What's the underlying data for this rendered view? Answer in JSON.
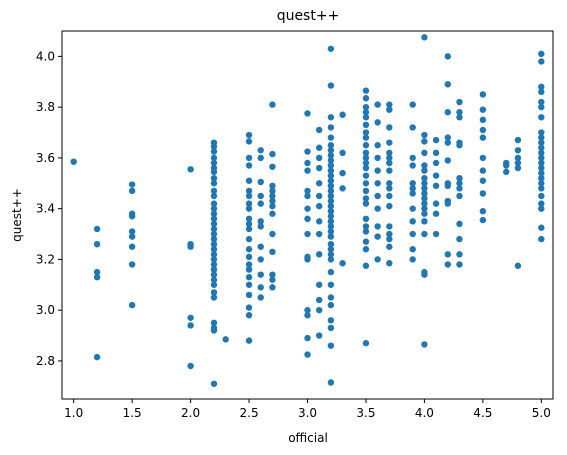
{
  "chart_data": {
    "type": "scatter",
    "title": "quest++",
    "xlabel": "official",
    "ylabel": "quest++",
    "xlim": [
      0.9,
      5.1
    ],
    "ylim": [
      2.65,
      4.1
    ],
    "x_ticks": [
      "1.0",
      "1.5",
      "2.0",
      "2.5",
      "3.0",
      "3.5",
      "4.0",
      "4.5",
      "5.0"
    ],
    "y_ticks": [
      "2.8",
      "3.0",
      "3.2",
      "3.4",
      "3.6",
      "3.8",
      "4.0"
    ],
    "x_tick_values": [
      1.0,
      1.5,
      2.0,
      2.5,
      3.0,
      3.5,
      4.0,
      4.5,
      5.0
    ],
    "y_tick_values": [
      2.8,
      3.0,
      3.2,
      3.4,
      3.6,
      3.8,
      4.0
    ],
    "grid": false,
    "point_color": "#1f77b4",
    "points": [
      [
        1.0,
        3.585
      ],
      [
        1.2,
        3.32
      ],
      [
        1.2,
        3.26
      ],
      [
        1.2,
        3.15
      ],
      [
        1.2,
        3.13
      ],
      [
        1.2,
        2.815
      ],
      [
        1.5,
        3.495
      ],
      [
        1.5,
        3.47
      ],
      [
        1.5,
        3.38
      ],
      [
        1.5,
        3.37
      ],
      [
        1.5,
        3.31
      ],
      [
        1.5,
        3.29
      ],
      [
        1.5,
        3.25
      ],
      [
        1.5,
        3.18
      ],
      [
        1.5,
        3.02
      ],
      [
        2.0,
        3.555
      ],
      [
        2.0,
        3.26
      ],
      [
        2.0,
        3.25
      ],
      [
        2.0,
        2.97
      ],
      [
        2.0,
        2.94
      ],
      [
        2.0,
        2.78
      ],
      [
        2.2,
        3.66
      ],
      [
        2.2,
        3.645
      ],
      [
        2.2,
        3.625
      ],
      [
        2.2,
        3.6
      ],
      [
        2.2,
        3.58
      ],
      [
        2.2,
        3.56
      ],
      [
        2.2,
        3.545
      ],
      [
        2.2,
        3.52
      ],
      [
        2.2,
        3.5
      ],
      [
        2.2,
        3.47
      ],
      [
        2.2,
        3.45
      ],
      [
        2.2,
        3.42
      ],
      [
        2.2,
        3.4
      ],
      [
        2.2,
        3.38
      ],
      [
        2.2,
        3.36
      ],
      [
        2.2,
        3.34
      ],
      [
        2.2,
        3.32
      ],
      [
        2.2,
        3.3
      ],
      [
        2.2,
        3.28
      ],
      [
        2.2,
        3.26
      ],
      [
        2.2,
        3.24
      ],
      [
        2.2,
        3.22
      ],
      [
        2.2,
        3.2
      ],
      [
        2.2,
        3.18
      ],
      [
        2.2,
        3.16
      ],
      [
        2.2,
        3.14
      ],
      [
        2.2,
        3.12
      ],
      [
        2.2,
        3.1
      ],
      [
        2.2,
        3.07
      ],
      [
        2.2,
        3.05
      ],
      [
        2.2,
        2.95
      ],
      [
        2.2,
        2.93
      ],
      [
        2.2,
        2.92
      ],
      [
        2.2,
        2.71
      ],
      [
        2.3,
        2.885
      ],
      [
        2.5,
        3.69
      ],
      [
        2.5,
        3.665
      ],
      [
        2.5,
        3.6
      ],
      [
        2.5,
        3.57
      ],
      [
        2.5,
        3.51
      ],
      [
        2.5,
        3.47
      ],
      [
        2.5,
        3.45
      ],
      [
        2.5,
        3.42
      ],
      [
        2.5,
        3.4
      ],
      [
        2.5,
        3.36
      ],
      [
        2.5,
        3.34
      ],
      [
        2.5,
        3.32
      ],
      [
        2.5,
        3.28
      ],
      [
        2.5,
        3.24
      ],
      [
        2.5,
        3.21
      ],
      [
        2.5,
        3.18
      ],
      [
        2.5,
        3.16
      ],
      [
        2.5,
        3.13
      ],
      [
        2.5,
        3.1
      ],
      [
        2.5,
        3.06
      ],
      [
        2.5,
        3.01
      ],
      [
        2.5,
        2.98
      ],
      [
        2.5,
        2.88
      ],
      [
        2.6,
        3.63
      ],
      [
        2.6,
        3.6
      ],
      [
        2.6,
        3.505
      ],
      [
        2.6,
        3.45
      ],
      [
        2.6,
        3.42
      ],
      [
        2.6,
        3.35
      ],
      [
        2.6,
        3.33
      ],
      [
        2.6,
        3.25
      ],
      [
        2.6,
        3.2
      ],
      [
        2.6,
        3.14
      ],
      [
        2.6,
        3.09
      ],
      [
        2.6,
        3.05
      ],
      [
        2.7,
        3.81
      ],
      [
        2.7,
        3.615
      ],
      [
        2.7,
        3.565
      ],
      [
        2.7,
        3.49
      ],
      [
        2.7,
        3.47
      ],
      [
        2.7,
        3.45
      ],
      [
        2.7,
        3.43
      ],
      [
        2.7,
        3.41
      ],
      [
        2.7,
        3.38
      ],
      [
        2.7,
        3.3
      ],
      [
        2.7,
        3.23
      ],
      [
        2.7,
        3.14
      ],
      [
        2.7,
        3.12
      ],
      [
        2.7,
        3.09
      ],
      [
        3.0,
        3.775
      ],
      [
        3.0,
        3.625
      ],
      [
        3.0,
        3.58
      ],
      [
        3.0,
        3.55
      ],
      [
        3.0,
        3.47
      ],
      [
        3.0,
        3.45
      ],
      [
        3.0,
        3.4
      ],
      [
        3.0,
        3.36
      ],
      [
        3.0,
        3.3
      ],
      [
        3.0,
        3.21
      ],
      [
        3.0,
        3.2
      ],
      [
        3.0,
        3.0
      ],
      [
        3.0,
        2.98
      ],
      [
        3.0,
        2.89
      ],
      [
        3.0,
        2.825
      ],
      [
        3.1,
        3.71
      ],
      [
        3.1,
        3.64
      ],
      [
        3.1,
        3.6
      ],
      [
        3.1,
        3.56
      ],
      [
        3.1,
        3.5
      ],
      [
        3.1,
        3.45
      ],
      [
        3.1,
        3.41
      ],
      [
        3.1,
        3.35
      ],
      [
        3.1,
        3.3
      ],
      [
        3.1,
        3.22
      ],
      [
        3.1,
        3.1
      ],
      [
        3.1,
        3.04
      ],
      [
        3.1,
        3.0
      ],
      [
        3.1,
        2.9
      ],
      [
        3.2,
        4.03
      ],
      [
        3.2,
        3.885
      ],
      [
        3.2,
        3.76
      ],
      [
        3.2,
        3.72
      ],
      [
        3.2,
        3.68
      ],
      [
        3.2,
        3.65
      ],
      [
        3.2,
        3.63
      ],
      [
        3.2,
        3.61
      ],
      [
        3.2,
        3.59
      ],
      [
        3.2,
        3.57
      ],
      [
        3.2,
        3.55
      ],
      [
        3.2,
        3.53
      ],
      [
        3.2,
        3.51
      ],
      [
        3.2,
        3.49
      ],
      [
        3.2,
        3.47
      ],
      [
        3.2,
        3.45
      ],
      [
        3.2,
        3.43
      ],
      [
        3.2,
        3.41
      ],
      [
        3.2,
        3.39
      ],
      [
        3.2,
        3.37
      ],
      [
        3.2,
        3.35
      ],
      [
        3.2,
        3.33
      ],
      [
        3.2,
        3.31
      ],
      [
        3.2,
        3.29
      ],
      [
        3.2,
        3.26
      ],
      [
        3.2,
        3.24
      ],
      [
        3.2,
        3.22
      ],
      [
        3.2,
        3.2
      ],
      [
        3.2,
        3.15
      ],
      [
        3.2,
        3.1
      ],
      [
        3.2,
        3.05
      ],
      [
        3.2,
        3.02
      ],
      [
        3.2,
        2.96
      ],
      [
        3.2,
        2.93
      ],
      [
        3.2,
        2.86
      ],
      [
        3.2,
        2.715
      ],
      [
        3.3,
        3.77
      ],
      [
        3.3,
        3.62
      ],
      [
        3.3,
        3.54
      ],
      [
        3.3,
        3.48
      ],
      [
        3.3,
        3.185
      ],
      [
        3.5,
        3.865
      ],
      [
        3.5,
        3.835
      ],
      [
        3.5,
        3.8
      ],
      [
        3.5,
        3.78
      ],
      [
        3.5,
        3.76
      ],
      [
        3.5,
        3.73
      ],
      [
        3.5,
        3.7
      ],
      [
        3.5,
        3.68
      ],
      [
        3.5,
        3.65
      ],
      [
        3.5,
        3.62
      ],
      [
        3.5,
        3.6
      ],
      [
        3.5,
        3.58
      ],
      [
        3.5,
        3.56
      ],
      [
        3.5,
        3.53
      ],
      [
        3.5,
        3.5
      ],
      [
        3.5,
        3.47
      ],
      [
        3.5,
        3.44
      ],
      [
        3.5,
        3.42
      ],
      [
        3.5,
        3.36
      ],
      [
        3.5,
        3.33
      ],
      [
        3.5,
        3.31
      ],
      [
        3.5,
        3.27
      ],
      [
        3.5,
        3.24
      ],
      [
        3.5,
        3.175
      ],
      [
        3.5,
        2.87
      ],
      [
        3.6,
        3.81
      ],
      [
        3.6,
        3.74
      ],
      [
        3.6,
        3.65
      ],
      [
        3.6,
        3.6
      ],
      [
        3.6,
        3.55
      ],
      [
        3.6,
        3.5
      ],
      [
        3.6,
        3.45
      ],
      [
        3.6,
        3.4
      ],
      [
        3.6,
        3.33
      ],
      [
        3.6,
        3.29
      ],
      [
        3.6,
        3.2
      ],
      [
        3.7,
        3.81
      ],
      [
        3.7,
        3.79
      ],
      [
        3.7,
        3.72
      ],
      [
        3.7,
        3.66
      ],
      [
        3.7,
        3.62
      ],
      [
        3.7,
        3.6
      ],
      [
        3.7,
        3.58
      ],
      [
        3.7,
        3.55
      ],
      [
        3.7,
        3.5
      ],
      [
        3.7,
        3.48
      ],
      [
        3.7,
        3.45
      ],
      [
        3.7,
        3.41
      ],
      [
        3.7,
        3.33
      ],
      [
        3.7,
        3.3
      ],
      [
        3.7,
        3.28
      ],
      [
        3.7,
        3.25
      ],
      [
        3.7,
        3.185
      ],
      [
        3.9,
        3.81
      ],
      [
        3.9,
        3.72
      ],
      [
        3.9,
        3.6
      ],
      [
        3.9,
        3.57
      ],
      [
        3.9,
        3.5
      ],
      [
        3.9,
        3.48
      ],
      [
        3.9,
        3.46
      ],
      [
        3.9,
        3.4
      ],
      [
        3.9,
        3.35
      ],
      [
        3.9,
        3.3
      ],
      [
        3.9,
        3.24
      ],
      [
        3.9,
        3.2
      ],
      [
        4.0,
        4.075
      ],
      [
        4.0,
        3.69
      ],
      [
        4.0,
        3.665
      ],
      [
        4.0,
        3.62
      ],
      [
        4.0,
        3.57
      ],
      [
        4.0,
        3.55
      ],
      [
        4.0,
        3.52
      ],
      [
        4.0,
        3.5
      ],
      [
        4.0,
        3.48
      ],
      [
        4.0,
        3.46
      ],
      [
        4.0,
        3.44
      ],
      [
        4.0,
        3.42
      ],
      [
        4.0,
        3.4
      ],
      [
        4.0,
        3.38
      ],
      [
        4.0,
        3.35
      ],
      [
        4.0,
        3.3
      ],
      [
        4.0,
        3.15
      ],
      [
        4.0,
        3.14
      ],
      [
        4.0,
        2.865
      ],
      [
        4.1,
        3.67
      ],
      [
        4.1,
        3.62
      ],
      [
        4.1,
        3.58
      ],
      [
        4.1,
        3.53
      ],
      [
        4.1,
        3.49
      ],
      [
        4.1,
        3.42
      ],
      [
        4.1,
        3.38
      ],
      [
        4.1,
        3.3
      ],
      [
        4.2,
        4.0
      ],
      [
        4.2,
        3.89
      ],
      [
        4.2,
        3.78
      ],
      [
        4.2,
        3.68
      ],
      [
        4.2,
        3.66
      ],
      [
        4.2,
        3.59
      ],
      [
        4.2,
        3.5
      ],
      [
        4.2,
        3.49
      ],
      [
        4.2,
        3.43
      ],
      [
        4.2,
        3.42
      ],
      [
        4.2,
        3.22
      ],
      [
        4.2,
        3.18
      ],
      [
        4.3,
        3.82
      ],
      [
        4.3,
        3.78
      ],
      [
        4.3,
        3.76
      ],
      [
        4.3,
        3.66
      ],
      [
        4.3,
        3.65
      ],
      [
        4.3,
        3.52
      ],
      [
        4.3,
        3.5
      ],
      [
        4.3,
        3.48
      ],
      [
        4.3,
        3.45
      ],
      [
        4.3,
        3.34
      ],
      [
        4.3,
        3.28
      ],
      [
        4.3,
        3.22
      ],
      [
        4.3,
        3.18
      ],
      [
        4.5,
        3.85
      ],
      [
        4.5,
        3.79
      ],
      [
        4.5,
        3.75
      ],
      [
        4.5,
        3.71
      ],
      [
        4.5,
        3.68
      ],
      [
        4.5,
        3.6
      ],
      [
        4.5,
        3.55
      ],
      [
        4.5,
        3.51
      ],
      [
        4.5,
        3.46
      ],
      [
        4.5,
        3.39
      ],
      [
        4.5,
        3.355
      ],
      [
        4.7,
        3.58
      ],
      [
        4.7,
        3.57
      ],
      [
        4.7,
        3.545
      ],
      [
        4.8,
        3.67
      ],
      [
        4.8,
        3.63
      ],
      [
        4.8,
        3.6
      ],
      [
        4.8,
        3.58
      ],
      [
        4.8,
        3.56
      ],
      [
        4.8,
        3.175
      ],
      [
        5.0,
        4.01
      ],
      [
        5.0,
        3.98
      ],
      [
        5.0,
        3.88
      ],
      [
        5.0,
        3.86
      ],
      [
        5.0,
        3.82
      ],
      [
        5.0,
        3.8
      ],
      [
        5.0,
        3.76
      ],
      [
        5.0,
        3.7
      ],
      [
        5.0,
        3.68
      ],
      [
        5.0,
        3.66
      ],
      [
        5.0,
        3.64
      ],
      [
        5.0,
        3.62
      ],
      [
        5.0,
        3.6
      ],
      [
        5.0,
        3.58
      ],
      [
        5.0,
        3.56
      ],
      [
        5.0,
        3.54
      ],
      [
        5.0,
        3.52
      ],
      [
        5.0,
        3.5
      ],
      [
        5.0,
        3.48
      ],
      [
        5.0,
        3.45
      ],
      [
        5.0,
        3.42
      ],
      [
        5.0,
        3.4
      ],
      [
        5.0,
        3.325
      ],
      [
        5.0,
        3.28
      ]
    ]
  }
}
